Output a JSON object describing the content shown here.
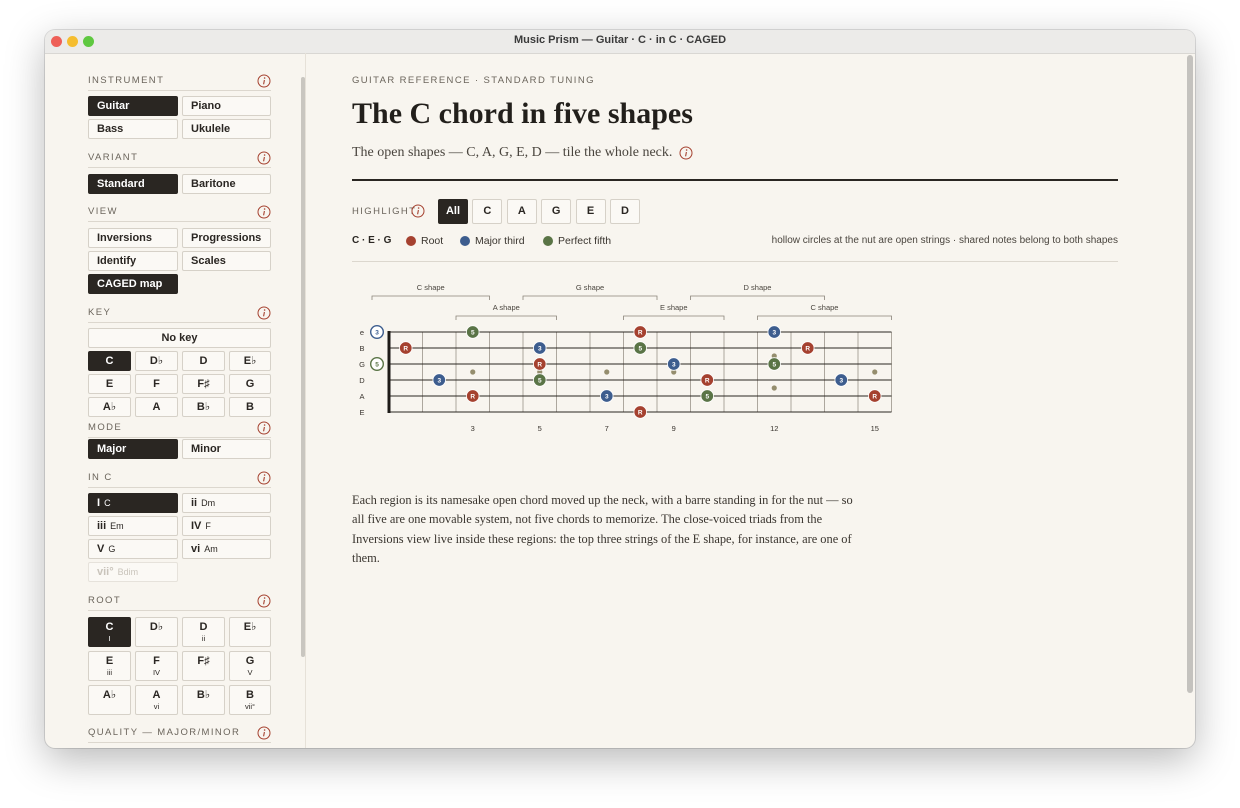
{
  "window_title": "Music Prism — Guitar · C · in C · CAGED",
  "sidebar": {
    "instrument": {
      "label": "INSTRUMENT",
      "options": [
        "Guitar",
        "Piano",
        "Bass",
        "Ukulele"
      ],
      "active": 0
    },
    "variant": {
      "label": "VARIANT",
      "options": [
        "Standard",
        "Baritone"
      ],
      "active": 0
    },
    "view": {
      "label": "VIEW",
      "options": [
        "Inversions",
        "Progressions",
        "Identify",
        "Scales",
        "CAGED map"
      ],
      "active": 4
    },
    "key": {
      "label": "KEY",
      "no_key": "No key",
      "options": [
        "C",
        "D♭",
        "D",
        "E♭",
        "E",
        "F",
        "F♯",
        "G",
        "A♭",
        "A",
        "B♭",
        "B"
      ],
      "active": 0
    },
    "mode": {
      "label": "MODE",
      "options": [
        "Major",
        "Minor"
      ],
      "active": 0
    },
    "in_key": {
      "label": "IN C",
      "options": [
        {
          "numeral": "I",
          "chord": "C"
        },
        {
          "numeral": "ii",
          "chord": "Dm"
        },
        {
          "numeral": "iii",
          "chord": "Em"
        },
        {
          "numeral": "IV",
          "chord": "F"
        },
        {
          "numeral": "V",
          "chord": "G"
        },
        {
          "numeral": "vi",
          "chord": "Am"
        },
        {
          "numeral": "vii°",
          "chord": "Bdim"
        }
      ],
      "active": 0,
      "disabled": [
        6
      ]
    },
    "root": {
      "label": "ROOT",
      "options": [
        {
          "note": "C",
          "degree": "I"
        },
        {
          "note": "D♭"
        },
        {
          "note": "D",
          "degree": "ii"
        },
        {
          "note": "E♭"
        },
        {
          "note": "E",
          "degree": "iii"
        },
        {
          "note": "F",
          "degree": "IV"
        },
        {
          "note": "F♯"
        },
        {
          "note": "G",
          "degree": "V"
        },
        {
          "note": "A♭"
        },
        {
          "note": "A",
          "degree": "vi"
        },
        {
          "note": "B♭"
        },
        {
          "note": "B",
          "degree": "vii°"
        }
      ],
      "active": 0
    },
    "quality": {
      "label": "QUALITY — MAJOR/MINOR"
    }
  },
  "main": {
    "eyebrow": "GUITAR REFERENCE · STANDARD TUNING",
    "title": "The C chord in five shapes",
    "subtitle": "The open shapes — C, A, G, E, D — tile the whole neck.",
    "highlight": {
      "label": "HIGHLIGHT",
      "options": [
        "All",
        "C",
        "A",
        "G",
        "E",
        "D"
      ],
      "active": 0
    },
    "legend": {
      "chord_tones": "C · E · G",
      "items": [
        {
          "label": "Root",
          "color": "#a5412f"
        },
        {
          "label": "Major third",
          "color": "#3d5d8e"
        },
        {
          "label": "Perfect fifth",
          "color": "#5a7446"
        }
      ],
      "note": "hollow circles at the nut are open strings · shared notes belong to both shapes"
    },
    "fretboard": {
      "strings": [
        "e",
        "B",
        "G",
        "D",
        "A",
        "E"
      ],
      "frets": 15,
      "fret_markers": [
        3,
        5,
        7,
        9,
        12,
        15
      ],
      "double_inlay": [
        false,
        false,
        false,
        false,
        true,
        false
      ],
      "shapes": [
        {
          "name": "C shape",
          "from": 0,
          "to": 3,
          "row": 0
        },
        {
          "name": "G shape",
          "from": 4,
          "to": 8,
          "row": 0
        },
        {
          "name": "D shape",
          "from": 9,
          "to": 13,
          "row": 0
        },
        {
          "name": "A shape",
          "from": 2,
          "to": 5,
          "row": 1
        },
        {
          "name": "E shape",
          "from": 7,
          "to": 10,
          "row": 1
        },
        {
          "name": "C shape",
          "from": 11,
          "to": 15,
          "row": 1
        }
      ],
      "notes": [
        {
          "string": 0,
          "fret": 0,
          "label": "3",
          "tone": 1,
          "open": true
        },
        {
          "string": 0,
          "fret": 3,
          "label": "5",
          "tone": 2
        },
        {
          "string": 0,
          "fret": 8,
          "label": "R",
          "tone": 0
        },
        {
          "string": 0,
          "fret": 12,
          "label": "3",
          "tone": 1
        },
        {
          "string": 1,
          "fret": 1,
          "label": "R",
          "tone": 0
        },
        {
          "string": 1,
          "fret": 5,
          "label": "3",
          "tone": 1
        },
        {
          "string": 1,
          "fret": 8,
          "label": "5",
          "tone": 2
        },
        {
          "string": 1,
          "fret": 13,
          "label": "R",
          "tone": 0
        },
        {
          "string": 2,
          "fret": 0,
          "label": "5",
          "tone": 2,
          "open": true
        },
        {
          "string": 2,
          "fret": 5,
          "label": "R",
          "tone": 0
        },
        {
          "string": 2,
          "fret": 9,
          "label": "3",
          "tone": 1
        },
        {
          "string": 2,
          "fret": 12,
          "label": "5",
          "tone": 2
        },
        {
          "string": 3,
          "fret": 2,
          "label": "3",
          "tone": 1
        },
        {
          "string": 3,
          "fret": 5,
          "label": "5",
          "tone": 2
        },
        {
          "string": 3,
          "fret": 10,
          "label": "R",
          "tone": 0
        },
        {
          "string": 3,
          "fret": 14,
          "label": "3",
          "tone": 1
        },
        {
          "string": 4,
          "fret": 3,
          "label": "R",
          "tone": 0
        },
        {
          "string": 4,
          "fret": 7,
          "label": "3",
          "tone": 1
        },
        {
          "string": 4,
          "fret": 10,
          "label": "5",
          "tone": 2
        },
        {
          "string": 4,
          "fret": 15,
          "label": "R",
          "tone": 0
        },
        {
          "string": 5,
          "fret": 8,
          "label": "R",
          "tone": 0
        }
      ]
    },
    "paragraph": "Each region is its namesake open chord moved up the neck, with a barre standing in for the nut — so all five are one movable system, not five chords to memorize. The close-voiced triads from the Inversions view live inside these regions: the top three strings of the E shape, for instance, are one of them."
  }
}
